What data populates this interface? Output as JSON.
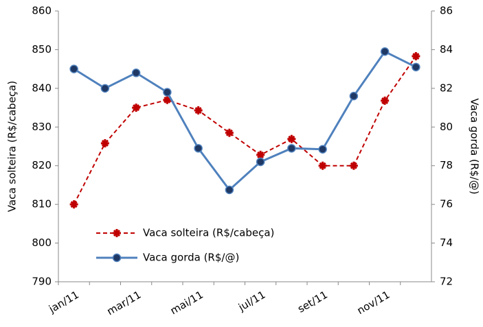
{
  "chart_data": {
    "type": "line",
    "categories": [
      "jan/11",
      null,
      "mar/11",
      null,
      "mai/11",
      null,
      "jul/11",
      null,
      "set/11",
      null,
      "nov/11",
      null
    ],
    "y_label": "Vaca  solteira (R$/cabeça)",
    "y2_label": "Vaca  gorda (R$/@)",
    "ylim": [
      790,
      860
    ],
    "yticks": [
      790,
      800,
      810,
      820,
      830,
      840,
      850,
      860
    ],
    "y2lim": [
      72,
      86
    ],
    "y2ticks": [
      72,
      74,
      76,
      78,
      80,
      82,
      84,
      86
    ],
    "series": [
      {
        "name": "Vaca solteira (R$/cabeça)",
        "color": "#c00000",
        "dashed": true,
        "values": [
          810,
          825.8,
          835,
          837,
          834.3,
          828.5,
          822.8,
          826.9,
          820,
          820,
          836.8,
          848.3
        ]
      },
      {
        "name": "Vaca gorda (R$/@)",
        "color": "#4f81bd",
        "axis": "y2",
        "values": [
          83.0,
          82.0,
          82.8,
          81.8,
          78.9,
          76.75,
          78.2,
          78.9,
          78.85,
          81.6,
          83.9,
          83.1
        ]
      }
    ]
  }
}
